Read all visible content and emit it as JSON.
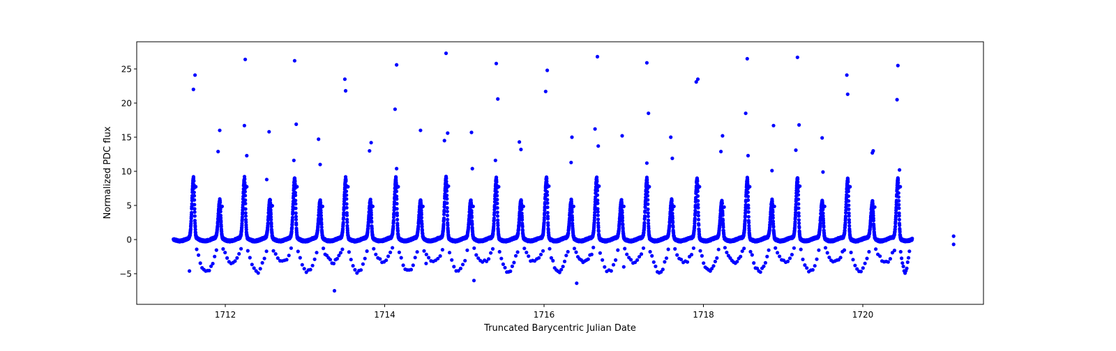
{
  "chart_data": {
    "type": "scatter",
    "title": "",
    "xlabel": "Truncated Barycentric Julian Date",
    "ylabel": "Normalized PDC flux",
    "xlim": [
      1710.9,
      1721.53
    ],
    "ylim": [
      -9.4,
      29.1
    ],
    "xticks": [
      1712,
      1714,
      1716,
      1718,
      1720
    ],
    "xtick_labels": [
      "1712",
      "1714",
      "1716",
      "1718",
      "1720"
    ],
    "yticks": [
      -5,
      0,
      5,
      10,
      15,
      20,
      25
    ],
    "ytick_labels": [
      "−5",
      "0",
      "5",
      "10",
      "15",
      "20",
      "25"
    ],
    "grid": false,
    "legend": null,
    "marker_color": "#0000ff",
    "marker": "circle",
    "series": [
      {
        "name": "flux",
        "description": "Periodic pulsating light curve: baseline near 0 with sharp peaks roughly every 0.31 d alternating between ~8.6 and ~5.4; scattered outliers between -7.5 and 27.",
        "peaks": [
          {
            "x": 1711.6,
            "y": 8.6
          },
          {
            "x": 1711.93,
            "y": 5.4
          },
          {
            "x": 1712.24,
            "y": 8.6
          },
          {
            "x": 1712.56,
            "y": 5.5
          },
          {
            "x": 1712.87,
            "y": 8.6
          },
          {
            "x": 1713.19,
            "y": 5.4
          },
          {
            "x": 1713.51,
            "y": 8.6
          },
          {
            "x": 1713.82,
            "y": 5.4
          },
          {
            "x": 1714.14,
            "y": 8.6
          },
          {
            "x": 1714.45,
            "y": 5.4
          },
          {
            "x": 1714.77,
            "y": 8.7
          },
          {
            "x": 1715.08,
            "y": 5.4
          },
          {
            "x": 1715.4,
            "y": 8.6
          },
          {
            "x": 1715.71,
            "y": 5.4
          },
          {
            "x": 1716.03,
            "y": 8.7
          },
          {
            "x": 1716.34,
            "y": 5.4
          },
          {
            "x": 1716.66,
            "y": 8.7
          },
          {
            "x": 1716.97,
            "y": 5.4
          },
          {
            "x": 1717.29,
            "y": 8.6
          },
          {
            "x": 1717.6,
            "y": 5.4
          },
          {
            "x": 1717.92,
            "y": 8.6
          },
          {
            "x": 1718.23,
            "y": 5.3
          },
          {
            "x": 1718.55,
            "y": 8.6
          },
          {
            "x": 1718.86,
            "y": 5.4
          },
          {
            "x": 1719.18,
            "y": 8.7
          },
          {
            "x": 1719.49,
            "y": 5.4
          },
          {
            "x": 1719.81,
            "y": 8.6
          },
          {
            "x": 1720.12,
            "y": 5.3
          },
          {
            "x": 1720.44,
            "y": 8.6
          }
        ],
        "baseline": 0.0,
        "x_range": [
          1711.35,
          1720.62
        ],
        "isolated_points": [
          {
            "x": 1721.14,
            "y": 0.5
          },
          {
            "x": 1721.14,
            "y": -0.7
          }
        ],
        "outliers_high": [
          {
            "x": 1711.6,
            "y": 22.0
          },
          {
            "x": 1711.62,
            "y": 24.1
          },
          {
            "x": 1711.91,
            "y": 12.9
          },
          {
            "x": 1711.93,
            "y": 16.0
          },
          {
            "x": 1712.24,
            "y": 16.7
          },
          {
            "x": 1712.25,
            "y": 26.4
          },
          {
            "x": 1712.27,
            "y": 12.3
          },
          {
            "x": 1712.55,
            "y": 15.8
          },
          {
            "x": 1712.52,
            "y": 8.8
          },
          {
            "x": 1712.86,
            "y": 11.6
          },
          {
            "x": 1712.87,
            "y": 26.2
          },
          {
            "x": 1712.89,
            "y": 16.9
          },
          {
            "x": 1713.17,
            "y": 14.7
          },
          {
            "x": 1713.19,
            "y": 11.0
          },
          {
            "x": 1713.5,
            "y": 23.5
          },
          {
            "x": 1713.51,
            "y": 21.8
          },
          {
            "x": 1713.81,
            "y": 13.0
          },
          {
            "x": 1713.83,
            "y": 14.2
          },
          {
            "x": 1714.13,
            "y": 19.1
          },
          {
            "x": 1714.15,
            "y": 25.6
          },
          {
            "x": 1714.15,
            "y": 10.4
          },
          {
            "x": 1714.45,
            "y": 16.0
          },
          {
            "x": 1714.75,
            "y": 14.5
          },
          {
            "x": 1714.77,
            "y": 27.3
          },
          {
            "x": 1714.79,
            "y": 15.6
          },
          {
            "x": 1715.09,
            "y": 15.7
          },
          {
            "x": 1715.1,
            "y": 10.4
          },
          {
            "x": 1715.39,
            "y": 11.6
          },
          {
            "x": 1715.4,
            "y": 25.8
          },
          {
            "x": 1715.42,
            "y": 20.6
          },
          {
            "x": 1715.69,
            "y": 14.3
          },
          {
            "x": 1715.71,
            "y": 13.2
          },
          {
            "x": 1716.02,
            "y": 21.7
          },
          {
            "x": 1716.04,
            "y": 24.8
          },
          {
            "x": 1716.34,
            "y": 11.3
          },
          {
            "x": 1716.35,
            "y": 15.0
          },
          {
            "x": 1716.64,
            "y": 16.2
          },
          {
            "x": 1716.67,
            "y": 26.8
          },
          {
            "x": 1716.68,
            "y": 13.7
          },
          {
            "x": 1716.98,
            "y": 15.2
          },
          {
            "x": 1717.29,
            "y": 11.2
          },
          {
            "x": 1717.29,
            "y": 25.9
          },
          {
            "x": 1717.31,
            "y": 18.5
          },
          {
            "x": 1717.59,
            "y": 15.0
          },
          {
            "x": 1717.61,
            "y": 11.9
          },
          {
            "x": 1717.91,
            "y": 23.1
          },
          {
            "x": 1717.93,
            "y": 23.5
          },
          {
            "x": 1718.22,
            "y": 12.9
          },
          {
            "x": 1718.24,
            "y": 15.2
          },
          {
            "x": 1718.53,
            "y": 18.5
          },
          {
            "x": 1718.55,
            "y": 26.5
          },
          {
            "x": 1718.56,
            "y": 12.3
          },
          {
            "x": 1718.86,
            "y": 10.1
          },
          {
            "x": 1718.88,
            "y": 16.7
          },
          {
            "x": 1719.16,
            "y": 13.1
          },
          {
            "x": 1719.18,
            "y": 26.7
          },
          {
            "x": 1719.2,
            "y": 16.8
          },
          {
            "x": 1719.49,
            "y": 14.9
          },
          {
            "x": 1719.5,
            "y": 9.9
          },
          {
            "x": 1719.8,
            "y": 24.1
          },
          {
            "x": 1719.81,
            "y": 21.3
          },
          {
            "x": 1720.12,
            "y": 12.7
          },
          {
            "x": 1720.13,
            "y": 13.0
          },
          {
            "x": 1720.43,
            "y": 20.5
          },
          {
            "x": 1720.44,
            "y": 25.5
          },
          {
            "x": 1720.46,
            "y": 10.2
          }
        ],
        "outliers_low_min": -7.5,
        "dips_typical_range": [
          -4.5,
          -1.0
        ]
      }
    ]
  }
}
